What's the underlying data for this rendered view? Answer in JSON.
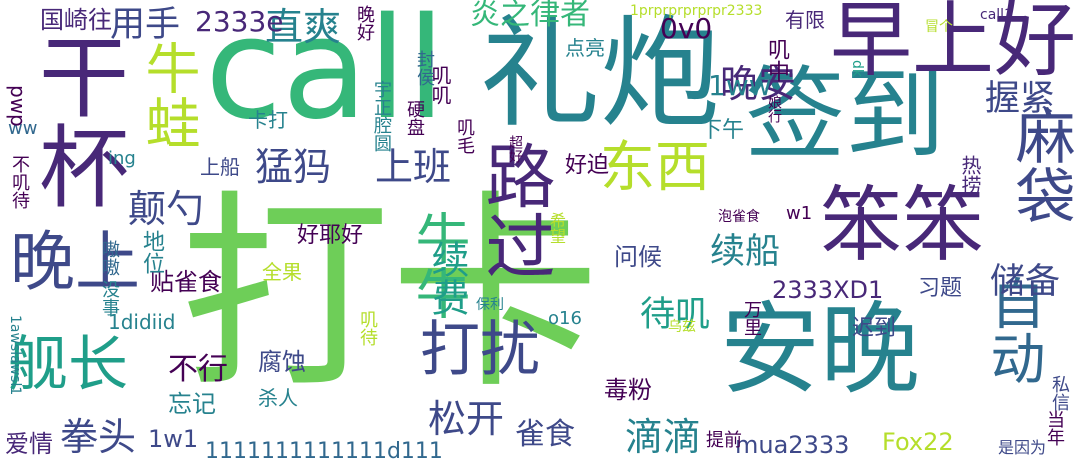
{
  "word_cloud": {
    "colors": {
      "purple": "#440154",
      "indigo": "#482878",
      "violet": "#3e4989",
      "blue": "#31688e",
      "teal": "#26828e",
      "cyan": "#1f9e89",
      "green": "#35b779",
      "lime": "#6ece58",
      "yellowgreen": "#b5de2b",
      "yellow": "#fde725"
    },
    "words": [
      {
        "text": "打卡"
      },
      {
        "text": "call"
      },
      {
        "text": "礼炮"
      },
      {
        "text": "签到"
      },
      {
        "text": "安晚"
      },
      {
        "text": "早上好"
      },
      {
        "text": "笨笨"
      },
      {
        "text": "干杯"
      },
      {
        "text": "路过"
      },
      {
        "text": "晚上"
      },
      {
        "text": "舰长"
      },
      {
        "text": "打扰"
      },
      {
        "text": "麻袋"
      },
      {
        "text": "自动"
      },
      {
        "text": "东西"
      },
      {
        "text": "牛蛙"
      },
      {
        "text": "牛牛"
      },
      {
        "text": "猛犸"
      },
      {
        "text": "上班"
      },
      {
        "text": "晚安"
      },
      {
        "text": "直爽"
      },
      {
        "text": "炎之律者"
      },
      {
        "text": "用手"
      },
      {
        "text": "握紧"
      },
      {
        "text": "颠勺"
      },
      {
        "text": "续费"
      },
      {
        "text": "续船"
      },
      {
        "text": "储备"
      },
      {
        "text": "松开"
      },
      {
        "text": "拳头"
      },
      {
        "text": "滴滴"
      },
      {
        "text": "待叽"
      },
      {
        "text": "雀食"
      },
      {
        "text": "不行"
      },
      {
        "text": "2333e"
      },
      {
        "text": "0v0"
      },
      {
        "text": "1ww"
      },
      {
        "text": "2333XD1"
      },
      {
        "text": "贴雀食"
      },
      {
        "text": "好耶好"
      },
      {
        "text": "问候"
      },
      {
        "text": "好迫"
      },
      {
        "text": "腐蚀"
      },
      {
        "text": "忘记"
      },
      {
        "text": "毒粉"
      },
      {
        "text": "1w1"
      },
      {
        "text": "mua2333"
      },
      {
        "text": "Fox22"
      },
      {
        "text": "1111111111111d111"
      },
      {
        "text": "爱情"
      },
      {
        "text": "国崎往"
      },
      {
        "text": "卡打"
      },
      {
        "text": "上船"
      },
      {
        "text": "地位"
      },
      {
        "text": "杀人"
      },
      {
        "text": "全果"
      },
      {
        "text": "习题"
      },
      {
        "text": "迟到"
      },
      {
        "text": "热捞"
      },
      {
        "text": "有限"
      },
      {
        "text": "下午"
      },
      {
        "text": "叽中"
      },
      {
        "text": "点亮"
      },
      {
        "text": "叽叽"
      },
      {
        "text": "叽毛"
      },
      {
        "text": "晚好"
      },
      {
        "text": "封侯"
      },
      {
        "text": "宇正腔圆"
      },
      {
        "text": "硬盘"
      },
      {
        "text": "嗷嗷"
      },
      {
        "text": "没事"
      },
      {
        "text": "不叽待"
      },
      {
        "text": "ww"
      },
      {
        "text": "pwp"
      },
      {
        "text": "ing"
      },
      {
        "text": "1awslawsl1"
      },
      {
        "text": "1didiid"
      },
      {
        "text": "o16"
      },
      {
        "text": "w1"
      },
      {
        "text": "万里"
      },
      {
        "text": "私信"
      },
      {
        "text": "当年"
      },
      {
        "text": "是因为"
      },
      {
        "text": "提前"
      },
      {
        "text": "乌兹"
      },
      {
        "text": "保利"
      },
      {
        "text": "叽待"
      },
      {
        "text": "泡雀食"
      },
      {
        "text": "希望"
      },
      {
        "text": "娘行"
      },
      {
        "text": "超好"
      },
      {
        "text": "call1"
      },
      {
        "text": "冒个"
      },
      {
        "text": "dk"
      },
      {
        "text": "1prprprprprpr2333"
      }
    ]
  }
}
